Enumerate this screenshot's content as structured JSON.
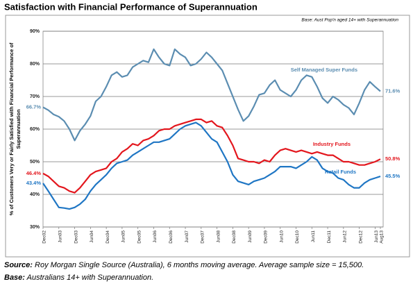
{
  "chart_data": {
    "type": "line",
    "title": "Satisfaction with Financial Performance of Superannuation",
    "subtitle": "Base: Aust Pop'n aged 14+ with Superannuation",
    "y_label": "% of Customers Very or Fairly Satisfied with Financial Performance of Superannuation",
    "source_label": "Source:",
    "source": "Roy Morgan Single Source (Australia), 6 months moving average. Average sample size = 15,500.",
    "base_label": "Base:",
    "base": "Australians 14+ with Superannuation.",
    "categories": [
      "Dec02",
      null,
      null,
      "Jun03",
      null,
      null,
      "Dec03",
      null,
      null,
      "Jun04",
      null,
      null,
      "Dec04",
      null,
      null,
      "Jun05",
      null,
      null,
      "Dec05",
      null,
      null,
      "Jun06",
      null,
      null,
      "Dec06",
      null,
      null,
      "Jun07",
      null,
      null,
      "Dec07",
      null,
      null,
      "Jun08",
      null,
      null,
      "Dec08",
      null,
      null,
      "Jun09",
      null,
      null,
      "Dec09",
      null,
      null,
      "Jun10",
      null,
      null,
      "Dec10",
      null,
      null,
      "Jun11",
      null,
      null,
      "Dec11",
      null,
      null,
      "Jun12",
      null,
      null,
      "Dec12",
      null,
      null,
      "Jun13",
      "Aug13"
    ],
    "series": [
      {
        "name": "Self Managed Super Funds",
        "color": "#5b8db1",
        "values": [
          66.7,
          65.8,
          64.5,
          63.8,
          62.5,
          60,
          56.5,
          59.5,
          61.5,
          64,
          68.5,
          70,
          73,
          76.5,
          77.5,
          76,
          76.5,
          79,
          80,
          81,
          80.5,
          84.5,
          82,
          80,
          79.5,
          84.5,
          83,
          82,
          79.5,
          80,
          81.5,
          83.5,
          82,
          80,
          78,
          74,
          70,
          66,
          62.5,
          64,
          67,
          70.5,
          71,
          73.5,
          75,
          72,
          71,
          70,
          72,
          75,
          76.5,
          76,
          73,
          69.5,
          68,
          70,
          69,
          67.5,
          66.5,
          64.5,
          68,
          72,
          74.5,
          73,
          71.6
        ],
        "value_labels": [
          "66.7%",
          null,
          null,
          null,
          null,
          null,
          null,
          null,
          null,
          null,
          null,
          null,
          null,
          null,
          null,
          null,
          null,
          null,
          null,
          null,
          null,
          null,
          null,
          null,
          null,
          null,
          null,
          null,
          null,
          null,
          null,
          null,
          null,
          null,
          null,
          null,
          null,
          null,
          null,
          null,
          null,
          null,
          null,
          null,
          null,
          null,
          null,
          null,
          null,
          null,
          null,
          null,
          null,
          null,
          null,
          null,
          null,
          null,
          null,
          null,
          null,
          null,
          null,
          null,
          "71.6%"
        ]
      },
      {
        "name": "Industry Funds",
        "color": "#e3161d",
        "values": [
          46.4,
          45.5,
          44,
          42.5,
          42,
          41,
          40.5,
          42,
          44,
          46,
          47,
          47.5,
          48,
          50,
          51,
          53,
          54,
          55.5,
          55,
          56.5,
          57,
          58,
          59.5,
          60,
          60,
          61,
          61.5,
          62,
          62.5,
          63,
          63,
          62,
          62.5,
          61,
          60.5,
          58,
          55,
          51,
          50.5,
          50,
          50,
          49.5,
          50.5,
          50,
          52,
          53.5,
          54,
          53.5,
          53,
          53.5,
          53,
          52.5,
          53,
          52.5,
          52,
          52,
          51,
          50,
          50,
          49.5,
          49,
          49,
          49.5,
          50,
          50.8
        ],
        "value_labels": [
          "46.4%",
          null,
          null,
          null,
          null,
          null,
          null,
          null,
          null,
          null,
          null,
          null,
          null,
          null,
          null,
          null,
          null,
          null,
          null,
          null,
          null,
          null,
          null,
          null,
          null,
          null,
          null,
          null,
          null,
          null,
          null,
          null,
          null,
          null,
          null,
          null,
          null,
          null,
          null,
          null,
          null,
          null,
          null,
          null,
          null,
          null,
          null,
          null,
          null,
          null,
          null,
          null,
          null,
          null,
          null,
          null,
          null,
          null,
          null,
          null,
          null,
          null,
          null,
          null,
          "50.8%"
        ]
      },
      {
        "name": "Retail Funds",
        "color": "#1f76c4",
        "values": [
          43.4,
          41,
          38.5,
          36,
          35.8,
          35.5,
          36,
          37,
          38.5,
          41,
          43,
          44.5,
          46,
          48,
          49.5,
          50,
          50.5,
          52,
          53,
          54,
          55,
          56,
          56,
          56.5,
          57,
          58.5,
          60,
          61,
          61.5,
          62,
          61,
          59,
          57,
          56,
          53,
          50,
          46,
          44,
          43.5,
          43,
          44,
          44.5,
          45,
          46,
          47,
          48.5,
          48.5,
          48.5,
          48,
          49,
          50,
          51.5,
          50.5,
          48,
          47,
          46.5,
          45,
          44.5,
          43,
          42,
          42,
          43.5,
          44.5,
          45,
          45.5
        ],
        "value_labels": [
          "43.4%",
          null,
          null,
          null,
          null,
          null,
          null,
          null,
          null,
          null,
          null,
          null,
          null,
          null,
          null,
          null,
          null,
          null,
          null,
          null,
          null,
          null,
          null,
          null,
          null,
          null,
          null,
          null,
          null,
          null,
          null,
          null,
          null,
          null,
          null,
          null,
          null,
          null,
          null,
          null,
          null,
          null,
          null,
          null,
          null,
          null,
          null,
          null,
          null,
          null,
          null,
          null,
          null,
          null,
          null,
          null,
          null,
          null,
          null,
          null,
          null,
          null,
          null,
          null,
          "45.5%"
        ]
      }
    ],
    "ylim": [
      30,
      90
    ],
    "yticks": [
      {
        "value": 30,
        "label": "30%"
      },
      {
        "value": 40,
        "label": "40%"
      },
      {
        "value": 50,
        "label": "50%"
      },
      {
        "value": 60,
        "label": "60%"
      },
      {
        "value": 70,
        "label": "70%"
      },
      {
        "value": 80,
        "label": "80%"
      },
      {
        "value": 90,
        "label": "90%"
      }
    ],
    "grid": true
  }
}
